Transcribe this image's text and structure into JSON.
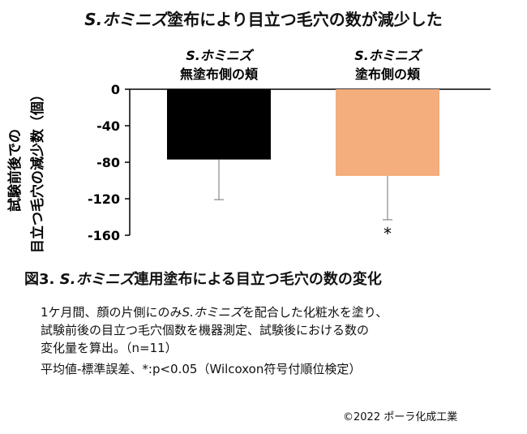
{
  "title": {
    "italic": "S.ホミニズ",
    "rest": "塗布により目立つ毛穴の数が減少した"
  },
  "chart_data": {
    "type": "bar",
    "ylabel_line1": "試験前後での",
    "ylabel_line2": "目立つ毛穴の減少数（個）",
    "ylim": [
      -160,
      0
    ],
    "yticks": [
      0,
      -40,
      -80,
      -120,
      -160
    ],
    "categories": [
      {
        "line1": "S.ホミニズ",
        "line2": "無塗布側の頬"
      },
      {
        "line1": "S.ホミニズ",
        "line2": "塗布側の頬"
      }
    ],
    "values": [
      -77,
      -95
    ],
    "errors": [
      44,
      48
    ],
    "colors": [
      "#000000",
      "#f4ad7c"
    ],
    "annotations": [
      "",
      "*"
    ]
  },
  "caption": {
    "prefix": "図3. ",
    "italic": "S.ホミニズ",
    "rest": "連用塗布による目立つ毛穴の数の変化"
  },
  "description": {
    "line1_pre": "1ケ月間、顔の片側にのみ",
    "line1_italic": "S.ホミニズ",
    "line1_post": "を配合した化粧水を塗り、",
    "line2": "試験前後の目立つ毛穴個数を機器測定、試験後における数の",
    "line3": "変化量を算出。（n=11）",
    "line4": "平均値-標準誤差、*:p<0.05（Wilcoxon符号付順位検定）"
  },
  "copyright": "©2022 ポーラ化成工業"
}
